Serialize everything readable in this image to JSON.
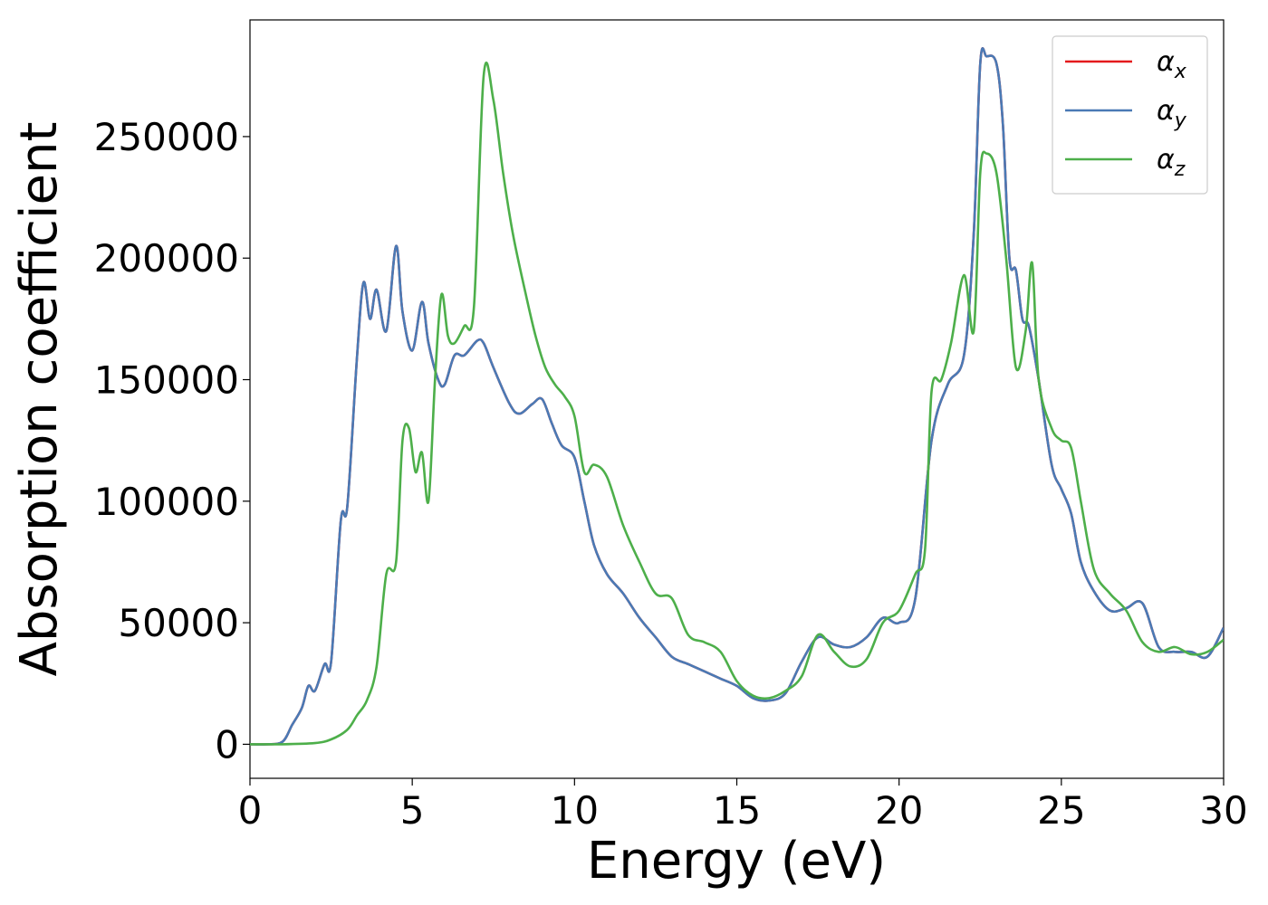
{
  "chart_data": {
    "type": "line",
    "title": "",
    "xlabel": "Energy (eV)",
    "ylabel": "Absorption coefficient",
    "xlim": [
      0,
      30
    ],
    "ylim": [
      -14000,
      298000
    ],
    "xticks": [
      0,
      5,
      10,
      15,
      20,
      25,
      30
    ],
    "yticks": [
      0,
      50000,
      100000,
      150000,
      200000,
      250000
    ],
    "grid": false,
    "legend_position": "top-right",
    "series": [
      {
        "name": "α",
        "sub": "x",
        "color": "#e41a1c",
        "x": [
          0,
          0.5,
          1.0,
          1.3,
          1.6,
          1.8,
          2.0,
          2.3,
          2.5,
          2.8,
          3.0,
          3.3,
          3.5,
          3.7,
          3.9,
          4.2,
          4.5,
          4.7,
          5.0,
          5.3,
          5.5,
          5.8,
          6.0,
          6.3,
          6.6,
          7.0,
          7.2,
          7.5,
          8.0,
          8.3,
          8.7,
          9.0,
          9.3,
          9.6,
          10.0,
          10.3,
          10.6,
          11.0,
          11.5,
          12.0,
          12.5,
          13.0,
          13.5,
          14.0,
          14.5,
          15.0,
          15.5,
          16.0,
          16.5,
          17.0,
          17.5,
          18.0,
          18.5,
          19.0,
          19.5,
          20.0,
          20.5,
          21.0,
          21.5,
          22.0,
          22.3,
          22.5,
          22.7,
          23.0,
          23.2,
          23.4,
          23.6,
          23.8,
          24.0,
          24.3,
          24.7,
          25.0,
          25.3,
          25.6,
          26.0,
          26.5,
          27.0,
          27.5,
          28.0,
          28.5,
          29.0,
          29.5,
          30.0
        ],
        "y": [
          0,
          0,
          1000,
          8000,
          15000,
          24000,
          22000,
          33000,
          34000,
          92000,
          98000,
          160000,
          190000,
          175000,
          187000,
          170000,
          205000,
          178000,
          162000,
          182000,
          165000,
          150000,
          148000,
          160000,
          160000,
          166000,
          165000,
          155000,
          140000,
          136000,
          140000,
          142000,
          132000,
          123000,
          118000,
          100000,
          82000,
          70000,
          62000,
          52000,
          44000,
          36000,
          33000,
          30000,
          27000,
          24000,
          19000,
          18000,
          21000,
          34000,
          44000,
          41000,
          40000,
          44000,
          52000,
          50000,
          60000,
          125000,
          148000,
          160000,
          210000,
          280000,
          283000,
          280000,
          255000,
          200000,
          195000,
          175000,
          172000,
          150000,
          115000,
          105000,
          95000,
          75000,
          63000,
          55000,
          56000,
          58000,
          40000,
          38000,
          38000,
          36000,
          48000
        ]
      },
      {
        "name": "α",
        "sub": "y",
        "color": "#4a7ab5",
        "x": [
          0,
          0.5,
          1.0,
          1.3,
          1.6,
          1.8,
          2.0,
          2.3,
          2.5,
          2.8,
          3.0,
          3.3,
          3.5,
          3.7,
          3.9,
          4.2,
          4.5,
          4.7,
          5.0,
          5.3,
          5.5,
          5.8,
          6.0,
          6.3,
          6.6,
          7.0,
          7.2,
          7.5,
          8.0,
          8.3,
          8.7,
          9.0,
          9.3,
          9.6,
          10.0,
          10.3,
          10.6,
          11.0,
          11.5,
          12.0,
          12.5,
          13.0,
          13.5,
          14.0,
          14.5,
          15.0,
          15.5,
          16.0,
          16.5,
          17.0,
          17.5,
          18.0,
          18.5,
          19.0,
          19.5,
          20.0,
          20.5,
          21.0,
          21.5,
          22.0,
          22.3,
          22.5,
          22.7,
          23.0,
          23.2,
          23.4,
          23.6,
          23.8,
          24.0,
          24.3,
          24.7,
          25.0,
          25.3,
          25.6,
          26.0,
          26.5,
          27.0,
          27.5,
          28.0,
          28.5,
          29.0,
          29.5,
          30.0
        ],
        "y": [
          0,
          0,
          1000,
          8000,
          15000,
          24000,
          22000,
          33000,
          34000,
          92000,
          98000,
          160000,
          190000,
          175000,
          187000,
          170000,
          205000,
          178000,
          162000,
          182000,
          165000,
          150000,
          148000,
          160000,
          160000,
          166000,
          165000,
          155000,
          140000,
          136000,
          140000,
          142000,
          132000,
          123000,
          118000,
          100000,
          82000,
          70000,
          62000,
          52000,
          44000,
          36000,
          33000,
          30000,
          27000,
          24000,
          19000,
          18000,
          21000,
          34000,
          44000,
          41000,
          40000,
          44000,
          52000,
          50000,
          60000,
          125000,
          148000,
          160000,
          210000,
          280000,
          283000,
          280000,
          255000,
          200000,
          195000,
          175000,
          172000,
          150000,
          115000,
          105000,
          95000,
          75000,
          63000,
          55000,
          56000,
          58000,
          40000,
          38000,
          38000,
          36000,
          48000
        ]
      },
      {
        "name": "α",
        "sub": "z",
        "color": "#4daf4a",
        "x": [
          0,
          1.0,
          2.0,
          2.5,
          3.0,
          3.3,
          3.6,
          3.9,
          4.2,
          4.5,
          4.7,
          4.9,
          5.1,
          5.3,
          5.5,
          5.7,
          5.9,
          6.1,
          6.3,
          6.6,
          6.9,
          7.2,
          7.5,
          7.8,
          8.1,
          8.5,
          8.8,
          9.1,
          9.4,
          9.7,
          10.0,
          10.3,
          10.6,
          11.0,
          11.5,
          12.0,
          12.5,
          13.0,
          13.5,
          14.0,
          14.5,
          15.0,
          15.5,
          16.0,
          16.5,
          17.0,
          17.5,
          18.0,
          18.5,
          19.0,
          19.5,
          20.0,
          20.5,
          20.8,
          21.0,
          21.3,
          21.6,
          22.0,
          22.3,
          22.5,
          22.7,
          23.0,
          23.3,
          23.6,
          23.9,
          24.1,
          24.3,
          24.7,
          25.0,
          25.3,
          25.6,
          26.0,
          26.5,
          27.0,
          27.5,
          28.0,
          28.5,
          29.0,
          29.5,
          30.0
        ],
        "y": [
          0,
          0,
          500,
          2000,
          6000,
          12000,
          18000,
          32000,
          70000,
          75000,
          125000,
          130000,
          112000,
          120000,
          100000,
          150000,
          185000,
          168000,
          165000,
          172000,
          180000,
          275000,
          265000,
          235000,
          210000,
          185000,
          168000,
          155000,
          148000,
          143000,
          135000,
          112000,
          115000,
          110000,
          90000,
          75000,
          62000,
          60000,
          45000,
          42000,
          38000,
          26000,
          20000,
          19000,
          22000,
          28000,
          45000,
          38000,
          32000,
          35000,
          50000,
          55000,
          70000,
          80000,
          145000,
          150000,
          165000,
          193000,
          170000,
          235000,
          243000,
          235000,
          200000,
          155000,
          170000,
          198000,
          150000,
          130000,
          125000,
          122000,
          100000,
          72000,
          62000,
          55000,
          42000,
          38000,
          40000,
          37000,
          38000,
          43000
        ]
      }
    ]
  }
}
